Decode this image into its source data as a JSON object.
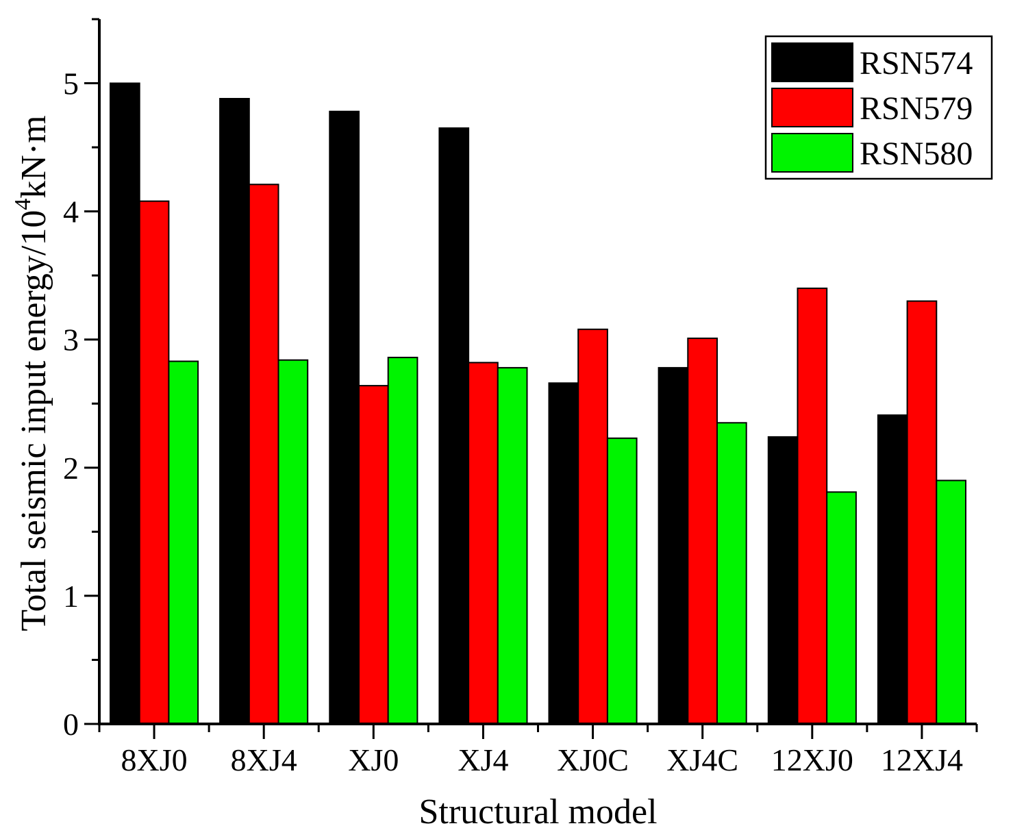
{
  "figure": {
    "background": "#ffffff",
    "text_color": "#000000"
  },
  "chart_data": {
    "type": "bar",
    "title": "",
    "xlabel": "Structural model",
    "ylabel": "Total seismic input energy/10⁴kN·m",
    "ylabel_parts": {
      "main": "Total seismic input energy/10",
      "superscript": "4",
      "unit": "kN·m"
    },
    "categories": [
      "8XJ0",
      "8XJ4",
      "XJ0",
      "XJ4",
      "XJ0C",
      "XJ4C",
      "12XJ0",
      "12XJ4"
    ],
    "series": [
      {
        "name": "RSN574",
        "color": "#000000",
        "values": [
          5.0,
          4.88,
          4.78,
          4.65,
          2.66,
          2.78,
          2.24,
          2.41
        ]
      },
      {
        "name": "RSN579",
        "color": "#ff0000",
        "values": [
          4.08,
          4.21,
          2.64,
          2.82,
          3.08,
          3.01,
          3.4,
          3.3
        ]
      },
      {
        "name": "RSN580",
        "color": "#00f400",
        "values": [
          2.83,
          2.84,
          2.86,
          2.78,
          2.23,
          2.35,
          1.81,
          1.9
        ]
      }
    ],
    "ylim": [
      0,
      5.5
    ],
    "ytick_labels": [
      "0",
      "1",
      "2",
      "3",
      "4",
      "5"
    ],
    "yticks": [
      0,
      1,
      2,
      3,
      4,
      5
    ],
    "y_minor_step": 0.5,
    "grid": "off",
    "legend_position": "top-right",
    "legend_entries": [
      "RSN574",
      "RSN579",
      "RSN580"
    ],
    "bar_edge_color": "#000000",
    "axis_color": "#000000"
  }
}
